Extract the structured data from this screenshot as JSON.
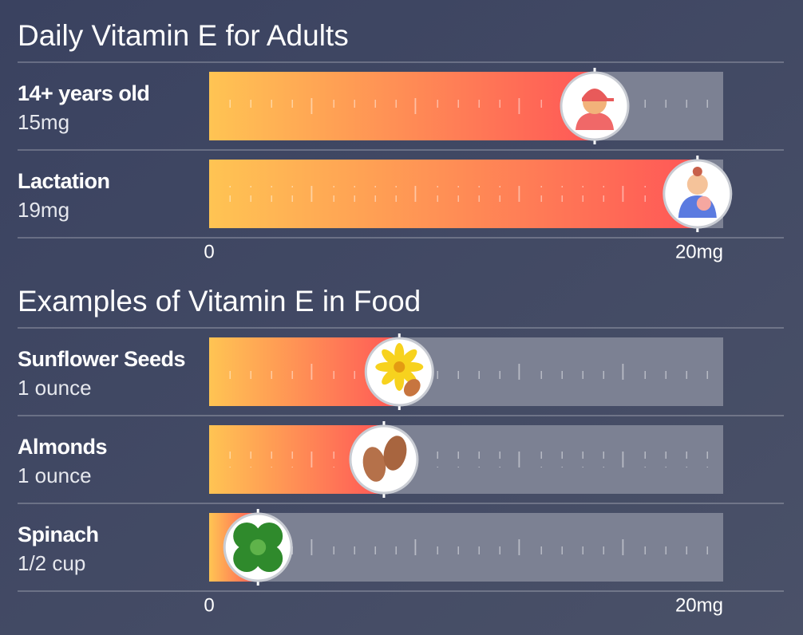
{
  "chart_data": [
    {
      "type": "bar",
      "title": "Daily Vitamin E for Adults",
      "categories": [
        "14+ years old",
        "Lactation"
      ],
      "values": [
        15,
        19
      ],
      "value_labels": [
        "15mg",
        "19mg"
      ],
      "xlim": [
        0,
        20
      ],
      "xticks": [
        0,
        {
          "value": 20,
          "label": "20mg"
        }
      ],
      "colors": [
        "#ffc453",
        "#ff5757"
      ],
      "track_color": "#7c8193"
    },
    {
      "type": "bar",
      "title": "Examples of Vitamin E in Food",
      "categories": [
        "Sunflower Seeds",
        "Almonds",
        "Spinach"
      ],
      "servings": [
        "1 ounce",
        "1 ounce",
        "1/2 cup"
      ],
      "values": [
        7.4,
        6.8,
        1.9
      ],
      "xlim": [
        0,
        20
      ],
      "xticks": [
        0,
        {
          "value": 20,
          "label": "20mg"
        }
      ],
      "colors": [
        "#ffc453",
        "#ff5757"
      ],
      "track_color": "#7c8193"
    }
  ]
}
